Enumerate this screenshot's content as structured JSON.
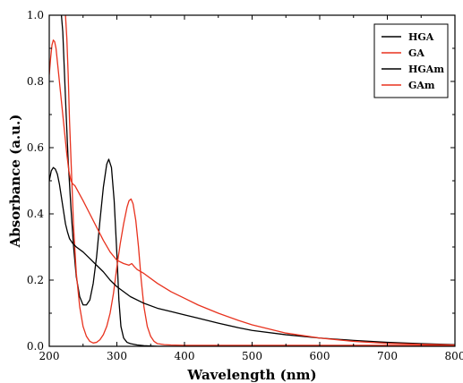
{
  "chart_data": {
    "type": "line",
    "xlabel": "Wavelength (nm)",
    "ylabel": "Absorbance (a.u.)",
    "xlim": [
      200,
      800
    ],
    "ylim": [
      0.0,
      1.0
    ],
    "xticks": [
      200,
      300,
      400,
      500,
      600,
      700,
      800
    ],
    "yticks": [
      0.0,
      0.2,
      0.4,
      0.6,
      0.8,
      1.0
    ],
    "xtick_labels": [
      "200",
      "300",
      "400",
      "500",
      "600",
      "700",
      "800"
    ],
    "ytick_labels": [
      "0.0",
      "0.2",
      "0.4",
      "0.6",
      "0.8",
      "1.0"
    ],
    "grid": false,
    "legend_position": "top-right",
    "series": [
      {
        "name": "HGA",
        "color": "#000000",
        "x": [
          218,
          220,
          222,
          225,
          228,
          232,
          236,
          240,
          245,
          250,
          255,
          260,
          265,
          270,
          275,
          280,
          285,
          288,
          292,
          296,
          300,
          303,
          306,
          310,
          315,
          320,
          330,
          340,
          350,
          360,
          380,
          400,
          450,
          500,
          600,
          700,
          800
        ],
        "y": [
          1.0,
          0.95,
          0.85,
          0.7,
          0.56,
          0.42,
          0.3,
          0.21,
          0.15,
          0.125,
          0.125,
          0.14,
          0.19,
          0.27,
          0.38,
          0.48,
          0.55,
          0.565,
          0.54,
          0.44,
          0.28,
          0.14,
          0.06,
          0.025,
          0.012,
          0.008,
          0.004,
          0.002,
          0.001,
          0.0,
          0.0,
          0.0,
          0.0,
          0.0,
          0.0,
          0.0,
          0.0
        ]
      },
      {
        "name": "GA",
        "color": "#e8321e",
        "x": [
          224,
          226,
          228,
          230,
          233,
          236,
          240,
          245,
          250,
          255,
          260,
          265,
          270,
          275,
          280,
          285,
          290,
          295,
          300,
          305,
          310,
          315,
          318,
          321,
          324,
          328,
          332,
          336,
          340,
          345,
          350,
          355,
          360,
          370,
          380,
          400,
          450,
          500,
          600,
          700,
          800
        ],
        "y": [
          1.0,
          0.93,
          0.82,
          0.68,
          0.52,
          0.36,
          0.22,
          0.12,
          0.06,
          0.03,
          0.015,
          0.01,
          0.012,
          0.02,
          0.035,
          0.06,
          0.1,
          0.16,
          0.24,
          0.31,
          0.37,
          0.42,
          0.44,
          0.445,
          0.43,
          0.38,
          0.3,
          0.2,
          0.12,
          0.06,
          0.03,
          0.015,
          0.008,
          0.005,
          0.004,
          0.003,
          0.003,
          0.003,
          0.003,
          0.003,
          0.003
        ]
      },
      {
        "name": "HGAm",
        "color": "#000000",
        "x": [
          200,
          203,
          206,
          209,
          212,
          215,
          218,
          221,
          224,
          227,
          230,
          235,
          240,
          250,
          260,
          270,
          280,
          290,
          300,
          320,
          340,
          360,
          380,
          400,
          420,
          450,
          480,
          500,
          550,
          600,
          650,
          700,
          750,
          800
        ],
        "y": [
          0.5,
          0.53,
          0.54,
          0.535,
          0.52,
          0.49,
          0.45,
          0.41,
          0.37,
          0.345,
          0.325,
          0.31,
          0.3,
          0.285,
          0.265,
          0.245,
          0.225,
          0.2,
          0.18,
          0.15,
          0.13,
          0.115,
          0.105,
          0.095,
          0.085,
          0.07,
          0.056,
          0.048,
          0.035,
          0.025,
          0.018,
          0.012,
          0.008,
          0.005
        ]
      },
      {
        "name": "GAm",
        "color": "#e8321e",
        "x": [
          200,
          202,
          204,
          206,
          208,
          210,
          212,
          214,
          217,
          220,
          223,
          226,
          229,
          232,
          235,
          238,
          242,
          246,
          250,
          260,
          270,
          280,
          290,
          300,
          310,
          318,
          322,
          326,
          330,
          340,
          360,
          380,
          400,
          420,
          450,
          480,
          500,
          550,
          600,
          650,
          700,
          750,
          800
        ],
        "y": [
          0.82,
          0.87,
          0.91,
          0.925,
          0.92,
          0.9,
          0.86,
          0.82,
          0.76,
          0.7,
          0.64,
          0.58,
          0.53,
          0.5,
          0.49,
          0.485,
          0.47,
          0.455,
          0.44,
          0.4,
          0.36,
          0.32,
          0.285,
          0.26,
          0.25,
          0.245,
          0.25,
          0.24,
          0.232,
          0.22,
          0.19,
          0.165,
          0.145,
          0.125,
          0.1,
          0.078,
          0.065,
          0.04,
          0.025,
          0.015,
          0.009,
          0.006,
          0.004
        ]
      }
    ]
  }
}
